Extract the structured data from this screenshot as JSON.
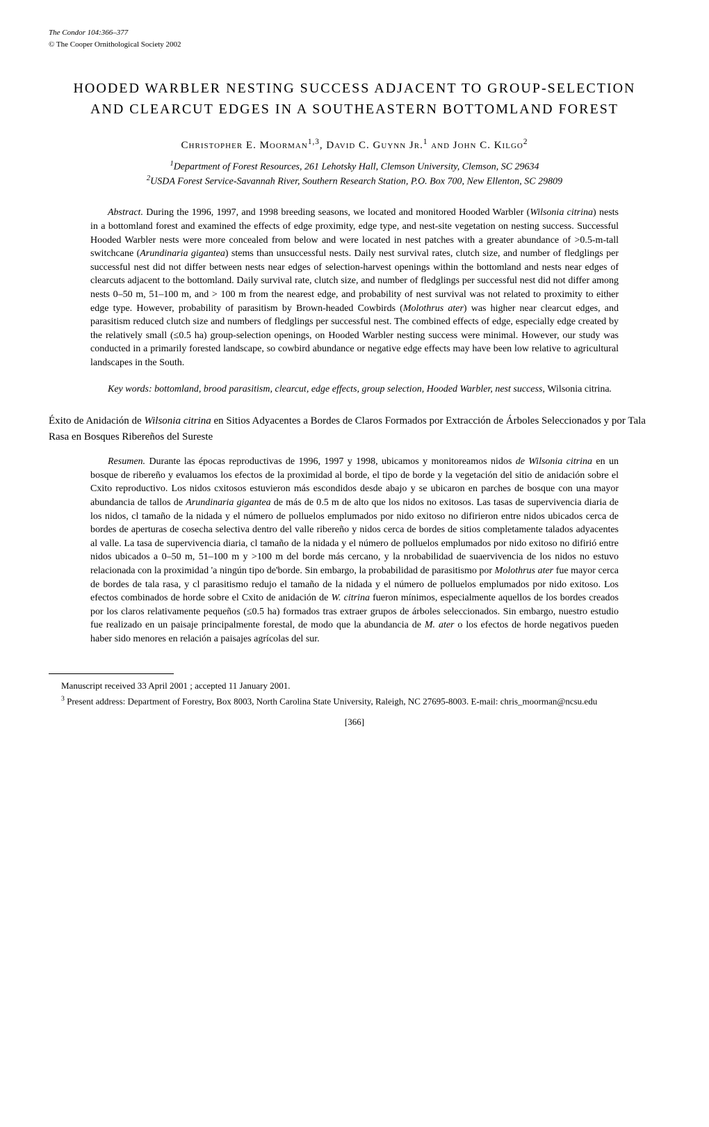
{
  "header": {
    "journal": "The Condor 104:366–377",
    "copyright": "© The Cooper Ornithological Society 2002"
  },
  "title": "HOODED WARBLER NESTING SUCCESS ADJACENT TO GROUP-SELECTION AND CLEARCUT EDGES IN A SOUTHEASTERN BOTTOMLAND FOREST",
  "authors_html": "Christopher E. Moorman<sup>1,3</sup>, David C. Guynn Jr.<sup>1</sup> and John C. Kilgo<sup>2</sup>",
  "affiliations_html": "<sup>1</sup>Department of Forest Resources, 261 Lehotsky Hall, Clemson University, Clemson, SC 29634<br><sup>2</sup>USDA Forest Service-Savannah River, Southern Research Station, P.O. Box 700, New Ellenton, SC 29809",
  "abstract": {
    "label": "Abstract.",
    "text_html": "During the 1996, 1997, and 1998 breeding seasons, we located and monitored Hooded Warbler (<span class=\"italic\">Wilsonia citrina</span>) nests in a bottomland forest and examined the effects of edge proximity, edge type, and nest-site vegetation on nesting success. Successful Hooded Warbler nests were more concealed from below and were located in nest patches with a greater abundance of &gt;0.5-m-tall switchcane (<span class=\"italic\">Arundinaria gigantea</span>) stems than unsuccessful nests. Daily nest survival rates, clutch size, and number of fledglings per successful nest did not differ between nests near edges of selection-harvest openings within the bottomland and nests near edges of clearcuts adjacent to the bottomland. Daily survival rate, clutch size, and number of fledglings per successful nest did not differ among nests 0–50 m, 51–100 m, and &gt; 100 m from the nearest edge, and probability of nest survival was not related to proximity to either edge type. However, probability of parasitism by Brown-headed Cowbirds (<span class=\"italic\">Molothrus ater</span>) was higher near clearcut edges, and parasitism reduced clutch size and numbers of fledglings per successful nest. The combined effects of edge, especially edge created by the relatively small (≤0.5 ha) group-selection openings, on Hooded Warbler nesting success were minimal. However, our study was conducted in a primarily forested landscape, so cowbird abundance or negative edge effects may have been low relative to agricultural landscapes in the South."
  },
  "keywords_html": "Key words: bottomland, brood parasitism, clearcut, edge effects, group selection, Hooded Warbler, nest success, <span style=\"font-style:normal\">Wilsonia citrina</span>.",
  "spanish_title_html": "Éxito de Anidación de <span class=\"italic\">Wilsonia citrina</span> en Sitios Adyacentes a Bordes de Claros Formados por Extracción de Árboles Seleccionados y por Tala Rasa en Bosques Ribereños del Sureste",
  "resumen": {
    "label": "Resumen.",
    "text_html": "Durante las épocas reproductivas de 1996, 1997 y 1998, ubicamos y monitoreamos nidos <span class=\"italic\">de Wilsonia citrina</span> en un bosque de ribereño y evaluamos los efectos de la proximidad al borde, el tipo de borde y la vegetación del sitio de anidación sobre el Cxito reproductivo. Los nidos cxitosos estuvieron más escondidos desde abajo y se ubicaron en parches de bosque con una mayor abundancia de tallos de <span class=\"italic\">Arundinaria gigantea</span> de más de 0.5 m de alto que los nidos no exitosos. Las tasas de supervivencia diaria de los nidos, cl tamaño de la nidada y el número de polluelos emplumados por nido exitoso no difirieron entre nidos ubicados cerca de bordes de aperturas de cosecha selectiva dentro del valle ribereño y nidos cerca de bordes de sitios completamente talados adyacentes al valle. La tasa de supervivencia diaria, cl tamaño de la nidada y el número de polluelos emplumados por nido exitoso no difirió entre nidos ubicados a 0–50 m, 51–100 m y &gt;100 m del borde más cercano, y la nrobabilidad de suaervivencia de los nidos no estuvo relacionada con la proximidad 'a ningún tipo de'borde. Sin embargo, la probabilidad de parasitismo por <span class=\"italic\">Molothrus ater</span> fue mayor cerca de bordes de tala rasa, y cl parasitismo redujo el tamaño de la nidada y el número de polluelos emplumados por nido exitoso. Los efectos combinados de horde sobre el Cxito de anidación de <span class=\"italic\">W. citrina</span> fueron mínimos, especialmente aquellos de los bordes creados por los claros relativamente pequeños (≤0.5 ha) formados tras extraer grupos de árboles seleccionados. Sin embargo, nuestro estudio fue realizado en un paisaje principalmente forestal, de modo que la abundancia de <span class=\"italic\">M. ater</span> o los efectos de horde negativos pueden haber sido menores en relación a paisajes agrícolas del sur."
  },
  "footnotes": {
    "manuscript": "Manuscript received 33 April 2001 ; accepted 11 January 2001.",
    "present_address_html": "<sup>3</sup> Present address: Department of Forestry, Box 8003, North Carolina State University, Raleigh, NC 27695-8003. E-mail: chris_moorman@ncsu.edu"
  },
  "page_number": "[366]"
}
